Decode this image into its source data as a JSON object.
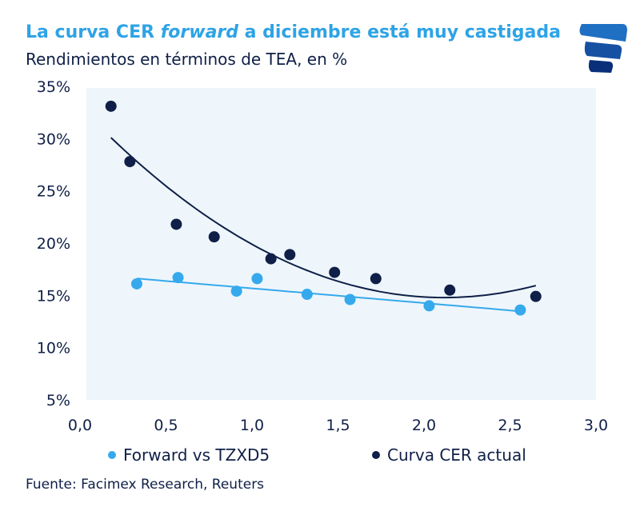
{
  "title_parts": {
    "a": "La curva CER ",
    "b": "forward",
    "c": " a diciembre está muy castigada"
  },
  "subtitle": "Rendimientos en términos de TEA, en %",
  "source": "Fuente: Facimex Research, Reuters",
  "logo": {
    "name": "facimex-logo-icon",
    "colors": [
      "#1f6fc2",
      "#0a2f7a"
    ]
  },
  "chart_data": {
    "type": "scatter",
    "xlim": [
      0,
      3
    ],
    "ylim": [
      5,
      35
    ],
    "x_ticks": [
      "0,0",
      "0,5",
      "1,0",
      "1,5",
      "2,0",
      "2,5",
      "3,0"
    ],
    "x_tick_values": [
      0,
      0.5,
      1,
      1.5,
      2,
      2.5,
      3
    ],
    "y_ticks": [
      "35%",
      "30%",
      "25%",
      "20%",
      "15%",
      "10%",
      "5%"
    ],
    "y_tick_values": [
      35,
      30,
      25,
      20,
      15,
      10,
      5
    ],
    "grid": false,
    "legend_placement": "bottom",
    "plot_background": "#eef6fc",
    "series": [
      {
        "name": "Forward vs TZXD5",
        "color": "#36a9ec",
        "trendline": "linear",
        "x": [
          0.33,
          0.57,
          0.91,
          1.03,
          1.32,
          1.57,
          2.03,
          2.56
        ],
        "y": [
          16.1,
          16.7,
          15.4,
          16.6,
          15.1,
          14.6,
          14.0,
          13.6
        ]
      },
      {
        "name": "Curva CER actual",
        "color": "#0f1f47",
        "trendline": "polynomial-2",
        "x": [
          0.18,
          0.29,
          0.56,
          0.78,
          1.11,
          1.22,
          1.48,
          1.72,
          2.15,
          2.65
        ],
        "y": [
          33.1,
          27.8,
          21.8,
          20.6,
          18.5,
          18.9,
          17.2,
          16.6,
          15.5,
          14.9
        ]
      }
    ]
  }
}
